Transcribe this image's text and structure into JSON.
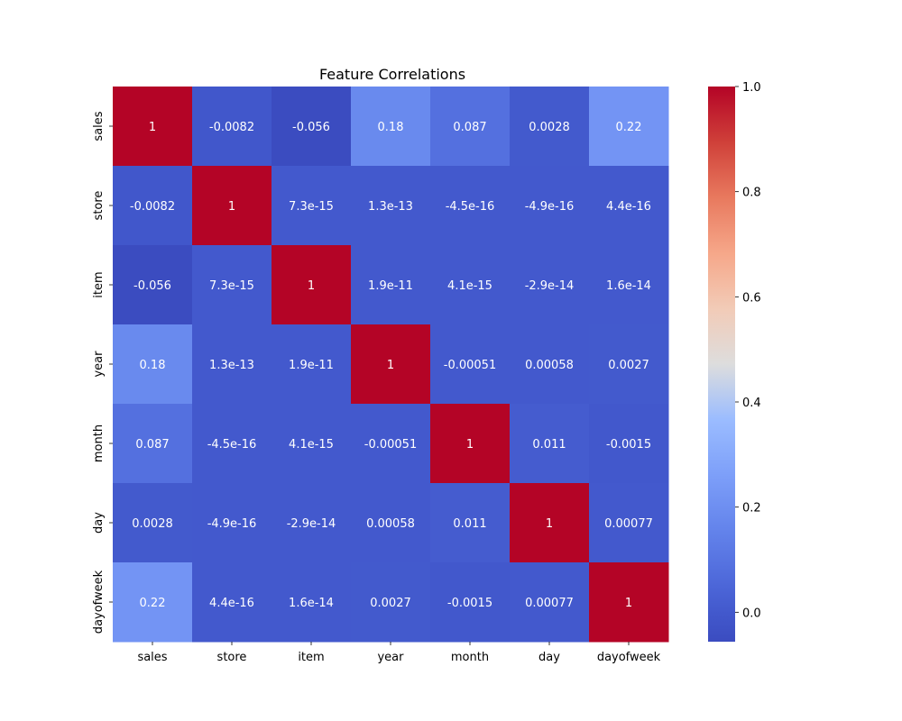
{
  "chart_data": {
    "type": "heatmap",
    "title": "Feature Correlations",
    "xlabel": "",
    "ylabel": "",
    "x_categories": [
      "sales",
      "store",
      "item",
      "year",
      "month",
      "day",
      "dayofweek"
    ],
    "y_categories": [
      "sales",
      "store",
      "item",
      "year",
      "month",
      "day",
      "dayofweek"
    ],
    "values": [
      [
        1,
        -0.0082,
        -0.056,
        0.18,
        0.087,
        0.0028,
        0.22
      ],
      [
        -0.0082,
        1,
        7.3e-15,
        1.3e-13,
        -4.5e-16,
        -4.9e-16,
        4.4e-16
      ],
      [
        -0.056,
        7.3e-15,
        1,
        1.9e-11,
        4.1e-15,
        -2.9e-14,
        1.6e-14
      ],
      [
        0.18,
        1.3e-13,
        1.9e-11,
        1,
        -0.00051,
        0.00058,
        0.0027
      ],
      [
        0.087,
        -4.5e-16,
        4.1e-15,
        -0.00051,
        1,
        0.011,
        -0.0015
      ],
      [
        0.0028,
        -4.9e-16,
        -2.9e-14,
        0.00058,
        0.011,
        1,
        0.00077
      ],
      [
        0.22,
        4.4e-16,
        1.6e-14,
        0.0027,
        -0.0015,
        0.00077,
        1
      ]
    ],
    "annotations": [
      [
        "1",
        "-0.0082",
        "-0.056",
        "0.18",
        "0.087",
        "0.0028",
        "0.22"
      ],
      [
        "-0.0082",
        "1",
        "7.3e-15",
        "1.3e-13",
        "-4.5e-16",
        "-4.9e-16",
        "4.4e-16"
      ],
      [
        "-0.056",
        "7.3e-15",
        "1",
        "1.9e-11",
        "4.1e-15",
        "-2.9e-14",
        "1.6e-14"
      ],
      [
        "0.18",
        "1.3e-13",
        "1.9e-11",
        "1",
        "-0.00051",
        "0.00058",
        "0.0027"
      ],
      [
        "0.087",
        "-4.5e-16",
        "4.1e-15",
        "-0.00051",
        "1",
        "0.011",
        "-0.0015"
      ],
      [
        "0.0028",
        "-4.9e-16",
        "-2.9e-14",
        "0.00058",
        "0.011",
        "1",
        "0.00077"
      ],
      [
        "0.22",
        "4.4e-16",
        "1.6e-14",
        "0.0027",
        "-0.0015",
        "0.00077",
        "1"
      ]
    ],
    "colormap": "coolwarm",
    "color_range": [
      -0.056,
      1.0
    ],
    "colorbar_ticks": [
      "0.0",
      "0.2",
      "0.4",
      "0.6",
      "0.8",
      "1.0"
    ],
    "grid": false,
    "legend": "colorbar-right"
  }
}
